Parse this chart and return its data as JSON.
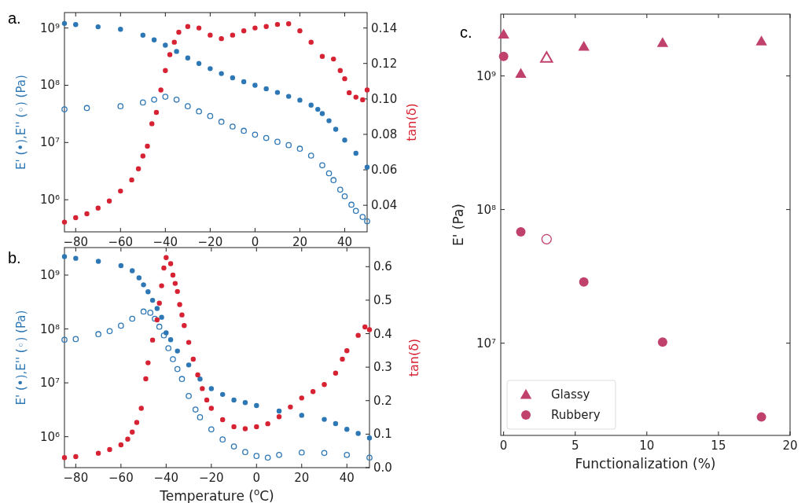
{
  "chart_data": [
    {
      "type": "scatter",
      "title": "a.",
      "ylabel": "E' (•),E'' (◦) (Pa)",
      "y2label": "tan(δ)",
      "log": true,
      "marker": "circle",
      "xlim": [
        -85,
        50
      ],
      "xticks": [
        -80,
        -60,
        -40,
        -20,
        0,
        20,
        40
      ],
      "ylim": [
        275000,
        1860000000
      ],
      "yticks": [
        {
          "value": 1000000,
          "label": "10⁶"
        },
        {
          "value": 10000000,
          "label": "10⁷"
        },
        {
          "value": 100000000,
          "label": "10⁸"
        },
        {
          "value": 1000000000,
          "label": "10⁹"
        }
      ],
      "y2lim": [
        0.025,
        0.1487
      ],
      "y2ticks": [
        {
          "value": 0.04,
          "label": "0.04"
        },
        {
          "value": 0.06,
          "label": "0.06"
        },
        {
          "value": 0.08,
          "label": "0.08"
        },
        {
          "value": 0.1,
          "label": "0.10"
        },
        {
          "value": 0.12,
          "label": "0.12"
        },
        {
          "value": 0.14,
          "label": "0.14"
        }
      ],
      "series": [
        {
          "color": "#2e77b5",
          "x": [
            -85,
            -80,
            -70,
            -60,
            -50,
            -45,
            -40,
            -35,
            -30,
            -25,
            -20,
            -15,
            -10,
            -5,
            0,
            5,
            10,
            15,
            20,
            25,
            28,
            30,
            33,
            36,
            40,
            45,
            50
          ],
          "values": [
            1200000000,
            1150000000,
            1050000000,
            950000000,
            750000000,
            620000000,
            500000000,
            390000000,
            300000000,
            240000000,
            195000000,
            160000000,
            135000000,
            115000000,
            100000000,
            87000000,
            75000000,
            64000000,
            55000000,
            45000000,
            38000000,
            32000000,
            24000000,
            17000000,
            11000000,
            6500000,
            3700000
          ]
        },
        {
          "color": "#2e77b5",
          "x": [
            -85,
            -75,
            -60,
            -50,
            -45,
            -40,
            -35,
            -30,
            -25,
            -20,
            -15,
            -10,
            -5,
            0,
            5,
            10,
            15,
            20,
            25,
            30,
            33,
            35,
            38,
            40,
            43,
            45,
            48,
            50
          ],
          "values": [
            38000000,
            40000000,
            43000000,
            50000000,
            56000000,
            63000000,
            56000000,
            43000000,
            35000000,
            29000000,
            23000000,
            19000000,
            16000000,
            13700000,
            12000000,
            10300000,
            9000000,
            7800000,
            5900000,
            4000000,
            2900000,
            2200000,
            1500000,
            1150000,
            820000,
            640000,
            500000,
            420000
          ]
        },
        {
          "color": "#d62232",
          "axis": "y2",
          "x": [
            -85,
            -80,
            -75,
            -70,
            -65,
            -60,
            -55,
            -52,
            -50,
            -48,
            -46,
            -44,
            -42,
            -40,
            -38,
            -36,
            -34,
            -30,
            -25,
            -20,
            -15,
            -10,
            -5,
            0,
            5,
            10,
            15,
            20,
            25,
            30,
            35,
            38,
            40,
            42,
            45,
            48,
            50
          ],
          "values": [
            0.0305,
            0.033,
            0.0352,
            0.0384,
            0.0424,
            0.048,
            0.0543,
            0.0606,
            0.0678,
            0.0733,
            0.086,
            0.0924,
            0.105,
            0.116,
            0.125,
            0.132,
            0.1376,
            0.1408,
            0.14,
            0.136,
            0.134,
            0.136,
            0.1384,
            0.14,
            0.1408,
            0.142,
            0.1424,
            0.1384,
            0.132,
            0.124,
            0.1225,
            0.116,
            0.1114,
            0.1035,
            0.101,
            0.0995,
            0.105
          ]
        }
      ]
    },
    {
      "type": "scatter",
      "title": "b.",
      "xlabel": "Temperature ($^{o}$C)",
      "ylabel": "E' (•),E'' (◦) (Pa)",
      "y2label": "tan(δ)",
      "log": true,
      "marker": "circle",
      "xlim": [
        -85,
        50
      ],
      "xticks": [
        -80,
        -60,
        -40,
        -20,
        0,
        20,
        40
      ],
      "ylim": [
        267000,
        3240000000
      ],
      "yticks": [
        {
          "value": 1000000,
          "label": "10⁶"
        },
        {
          "value": 10000000,
          "label": "10⁷"
        },
        {
          "value": 100000000,
          "label": "10⁸"
        },
        {
          "value": 1000000000,
          "label": "10⁹"
        }
      ],
      "y2lim": [
        0,
        0.657
      ],
      "y2ticks": [
        {
          "value": 0,
          "label": "0.0"
        },
        0.1,
        0.2,
        0.3,
        0.4,
        0.5,
        0.6
      ],
      "series": [
        {
          "color": "#2e77b5",
          "x": [
            -85,
            -80,
            -70,
            -60,
            -55,
            -52,
            -50,
            -48,
            -46,
            -44,
            -42,
            -40,
            -38,
            -35,
            -30,
            -25,
            -20,
            -15,
            -10,
            -5,
            0,
            10,
            20,
            30,
            35,
            40,
            45,
            50
          ],
          "values": [
            2200000000,
            2050000000,
            1800000000,
            1500000000,
            1200000000,
            890000000,
            660000000,
            490000000,
            340000000,
            240000000,
            165000000,
            85000000,
            63000000,
            39000000,
            21500000,
            11800000,
            7800000,
            6100000,
            4800000,
            4300000,
            3800000,
            3000000,
            2500000,
            2100000,
            1750000,
            1370000,
            1150000,
            950000
          ]
        },
        {
          "color": "#2e77b5",
          "x": [
            -85,
            -80,
            -70,
            -65,
            -60,
            -55,
            -50,
            -47,
            -45,
            -43,
            -41,
            -39,
            -37,
            -35,
            -33,
            -30,
            -27,
            -25,
            -20,
            -15,
            -10,
            -5,
            0,
            5,
            10,
            20,
            30,
            40,
            50
          ],
          "values": [
            63000000,
            65000000,
            80000000,
            91000000,
            115000000,
            155000000,
            210000000,
            200000000,
            155000000,
            110000000,
            76000000,
            44000000,
            27500000,
            18000000,
            11800000,
            5700000,
            3200000,
            2300000,
            1370000,
            890000,
            660000,
            520000,
            440000,
            410000,
            460000,
            510000,
            500000,
            460000,
            410000
          ]
        },
        {
          "color": "#d62232",
          "axis": "y2",
          "x": [
            -85,
            -80,
            -70,
            -65,
            -60,
            -57,
            -55,
            -53,
            -51,
            -49,
            -48,
            -46,
            -44,
            -43,
            -42,
            -41,
            -40,
            -38,
            -37,
            -36,
            -35,
            -34,
            -33,
            -32,
            -30,
            -28,
            -26,
            -24,
            -22,
            -20,
            -15,
            -10,
            -5,
            0,
            5,
            10,
            15,
            20,
            25,
            30,
            35,
            38,
            40,
            45,
            48,
            50
          ],
          "values": [
            0.03,
            0.033,
            0.043,
            0.054,
            0.068,
            0.085,
            0.106,
            0.135,
            0.177,
            0.265,
            0.313,
            0.381,
            0.441,
            0.491,
            0.543,
            0.596,
            0.627,
            0.609,
            0.575,
            0.55,
            0.526,
            0.487,
            0.456,
            0.424,
            0.374,
            0.324,
            0.277,
            0.236,
            0.202,
            0.177,
            0.143,
            0.122,
            0.116,
            0.122,
            0.131,
            0.152,
            0.181,
            0.208,
            0.227,
            0.248,
            0.282,
            0.324,
            0.349,
            0.395,
            0.42,
            0.412
          ]
        }
      ]
    },
    {
      "type": "scatter",
      "title": "c.",
      "xlabel": "Functionalization (%)",
      "ylabel": "E' (Pa)",
      "log": true,
      "legend": "bottom left",
      "xlim": [
        -0.2,
        20
      ],
      "xticks": [
        0,
        5,
        10,
        15,
        20
      ],
      "ylim": [
        2040000,
        2900000000
      ],
      "yticks": [
        {
          "value": 10000000,
          "label": "10⁷"
        },
        {
          "value": 100000000,
          "label": "10⁸"
        },
        {
          "value": 1000000000,
          "label": "10⁹"
        }
      ],
      "series": [
        {
          "name": "Glassy",
          "color": "#c0426c",
          "marker": "triangle",
          "x": [
            0,
            1.2,
            5.6,
            11.1,
            18
          ],
          "values": [
            2050000000,
            1040000000,
            1660000000,
            1770000000,
            1820000000
          ]
        },
        {
          "color": "#c0426c",
          "marker": "triangle",
          "x": [
            3
          ],
          "values": [
            1370000000
          ]
        },
        {
          "name": "Rubbery",
          "color": "#c0426c",
          "marker": "circle",
          "x": [
            0,
            1.2,
            5.6,
            11.1,
            18
          ],
          "values": [
            1400000000,
            68000000,
            28700000,
            10200000,
            2800000
          ]
        },
        {
          "color": "#c0426c",
          "marker": "circle",
          "x": [
            3
          ],
          "values": [
            60000000
          ]
        }
      ]
    }
  ]
}
